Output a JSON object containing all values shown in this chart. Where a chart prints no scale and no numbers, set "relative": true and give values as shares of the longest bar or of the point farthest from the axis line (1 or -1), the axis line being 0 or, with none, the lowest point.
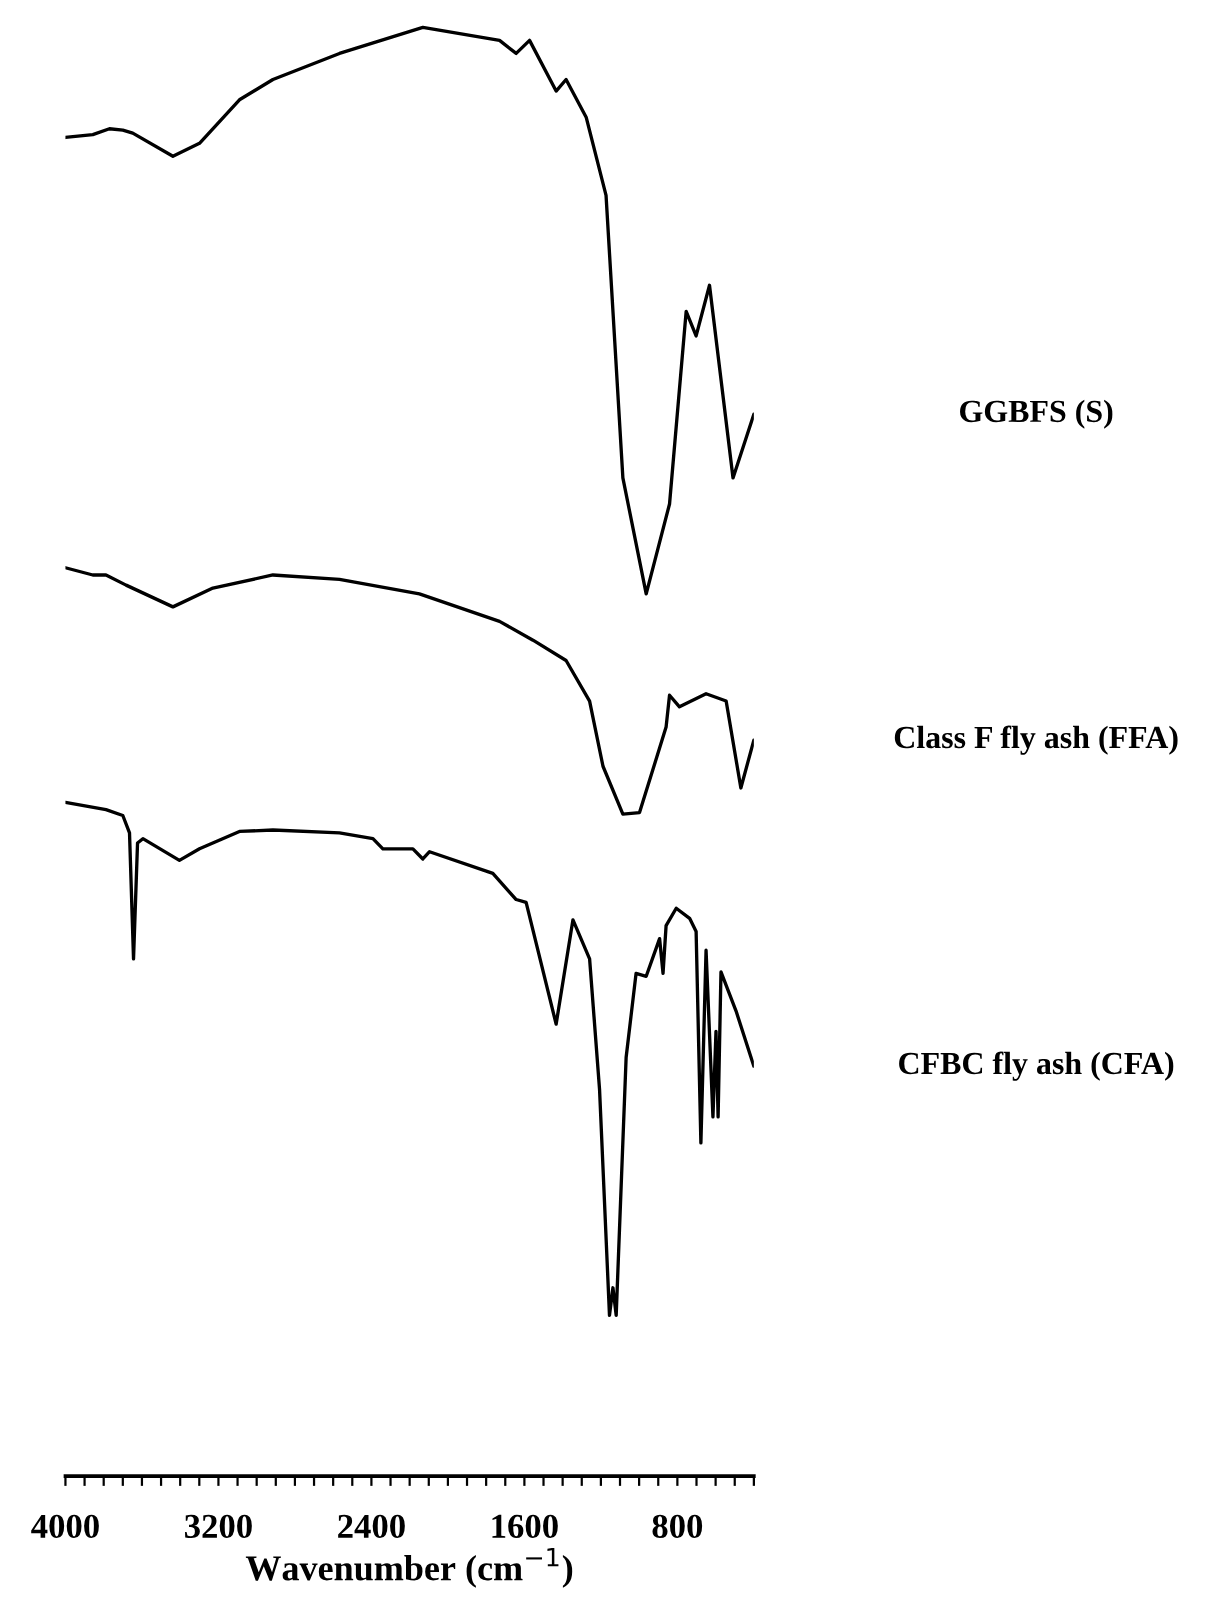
{
  "chart_data": {
    "type": "line",
    "relative": true,
    "xlabel": "Wavenumber (cm$^{−1}$)",
    "xlim": [
      4000,
      400
    ],
    "xticks": [
      4000,
      {
        "value": 3900,
        "label": null
      },
      {
        "value": 3800,
        "label": null
      },
      {
        "value": 3700,
        "label": null
      },
      {
        "value": 3600,
        "label": null
      },
      {
        "value": 3500,
        "label": null
      },
      {
        "value": 3400,
        "label": null
      },
      {
        "value": 3300,
        "label": null
      },
      3200,
      {
        "value": 3100,
        "label": null
      },
      {
        "value": 3000,
        "label": null
      },
      {
        "value": 2900,
        "label": null
      },
      {
        "value": 2800,
        "label": null
      },
      {
        "value": 2700,
        "label": null
      },
      {
        "value": 2600,
        "label": null
      },
      {
        "value": 2500,
        "label": null
      },
      2400,
      {
        "value": 2300,
        "label": null
      },
      {
        "value": 2200,
        "label": null
      },
      {
        "value": 2100,
        "label": null
      },
      {
        "value": 2000,
        "label": null
      },
      {
        "value": 1900,
        "label": null
      },
      {
        "value": 1800,
        "label": null
      },
      {
        "value": 1700,
        "label": null
      },
      1600,
      {
        "value": 1500,
        "label": null
      },
      {
        "value": 1400,
        "label": null
      },
      {
        "value": 1300,
        "label": null
      },
      {
        "value": 1200,
        "label": null
      },
      {
        "value": 1100,
        "label": null
      },
      {
        "value": 1000,
        "label": null
      },
      {
        "value": 900,
        "label": null
      },
      800,
      {
        "value": 700,
        "label": null
      },
      {
        "value": 600,
        "label": null
      },
      {
        "value": 500,
        "label": null
      },
      {
        "value": 400,
        "label": null
      }
    ],
    "grid": false,
    "legend": false,
    "marker": "none",
    "line_style": "solid",
    "series": [
      {
        "name": "GGBFS (S)",
        "color": "#000000",
        "x": [
          4000,
          3857,
          3770,
          3700,
          3648,
          3438,
          3299,
          3090,
          2915,
          2567,
          2131,
          1730,
          1643,
          1573,
          1434,
          1382,
          1277,
          1173,
          1085,
          963,
          841,
          754,
          702,
          632,
          509,
          400
        ],
        "values": [
          0.924,
          0.926,
          0.93,
          0.929,
          0.927,
          0.911,
          0.92,
          0.95,
          0.964,
          0.982,
          1.0,
          0.991,
          0.982,
          0.991,
          0.956,
          0.964,
          0.938,
          0.884,
          0.689,
          0.609,
          0.671,
          0.804,
          0.787,
          0.822,
          0.689,
          0.733
        ]
      },
      {
        "name": "Class F fly ash (FFA)",
        "color": "#000000",
        "x": [
          4000,
          3857,
          3788,
          3683,
          3438,
          3229,
          2915,
          2567,
          2149,
          1730,
          1555,
          1382,
          1259,
          1189,
          1085,
          998,
          859,
          841,
          789,
          650,
          545,
          468,
          400
        ],
        "values": [
          0.627,
          0.622,
          0.622,
          0.615,
          0.6,
          0.613,
          0.622,
          0.619,
          0.609,
          0.59,
          0.577,
          0.563,
          0.535,
          0.49,
          0.457,
          0.458,
          0.517,
          0.539,
          0.531,
          0.54,
          0.535,
          0.475,
          0.508
        ]
      },
      {
        "name": "CFBC fly ash (CFA)",
        "color": "#000000",
        "x": [
          4000,
          3788,
          3700,
          3665,
          3644,
          3623,
          3595,
          3404,
          3299,
          3090,
          2915,
          2567,
          2392,
          2340,
          2183,
          2131,
          2096,
          1765,
          1643,
          1591,
          1434,
          1346,
          1259,
          1207,
          1155,
          1137,
          1120,
          1068,
          1016,
          963,
          893,
          875,
          859,
          806,
          736,
          702,
          677,
          650,
          614,
          598,
          587,
          572,
          493,
          400
        ],
        "values": [
          0.465,
          0.46,
          0.456,
          0.444,
          0.357,
          0.437,
          0.44,
          0.425,
          0.433,
          0.445,
          0.446,
          0.444,
          0.44,
          0.433,
          0.433,
          0.426,
          0.431,
          0.416,
          0.398,
          0.396,
          0.312,
          0.384,
          0.357,
          0.267,
          0.111,
          0.13,
          0.111,
          0.289,
          0.347,
          0.345,
          0.371,
          0.347,
          0.38,
          0.392,
          0.385,
          0.376,
          0.23,
          0.363,
          0.248,
          0.307,
          0.248,
          0.348,
          0.321,
          0.283
        ]
      }
    ]
  }
}
